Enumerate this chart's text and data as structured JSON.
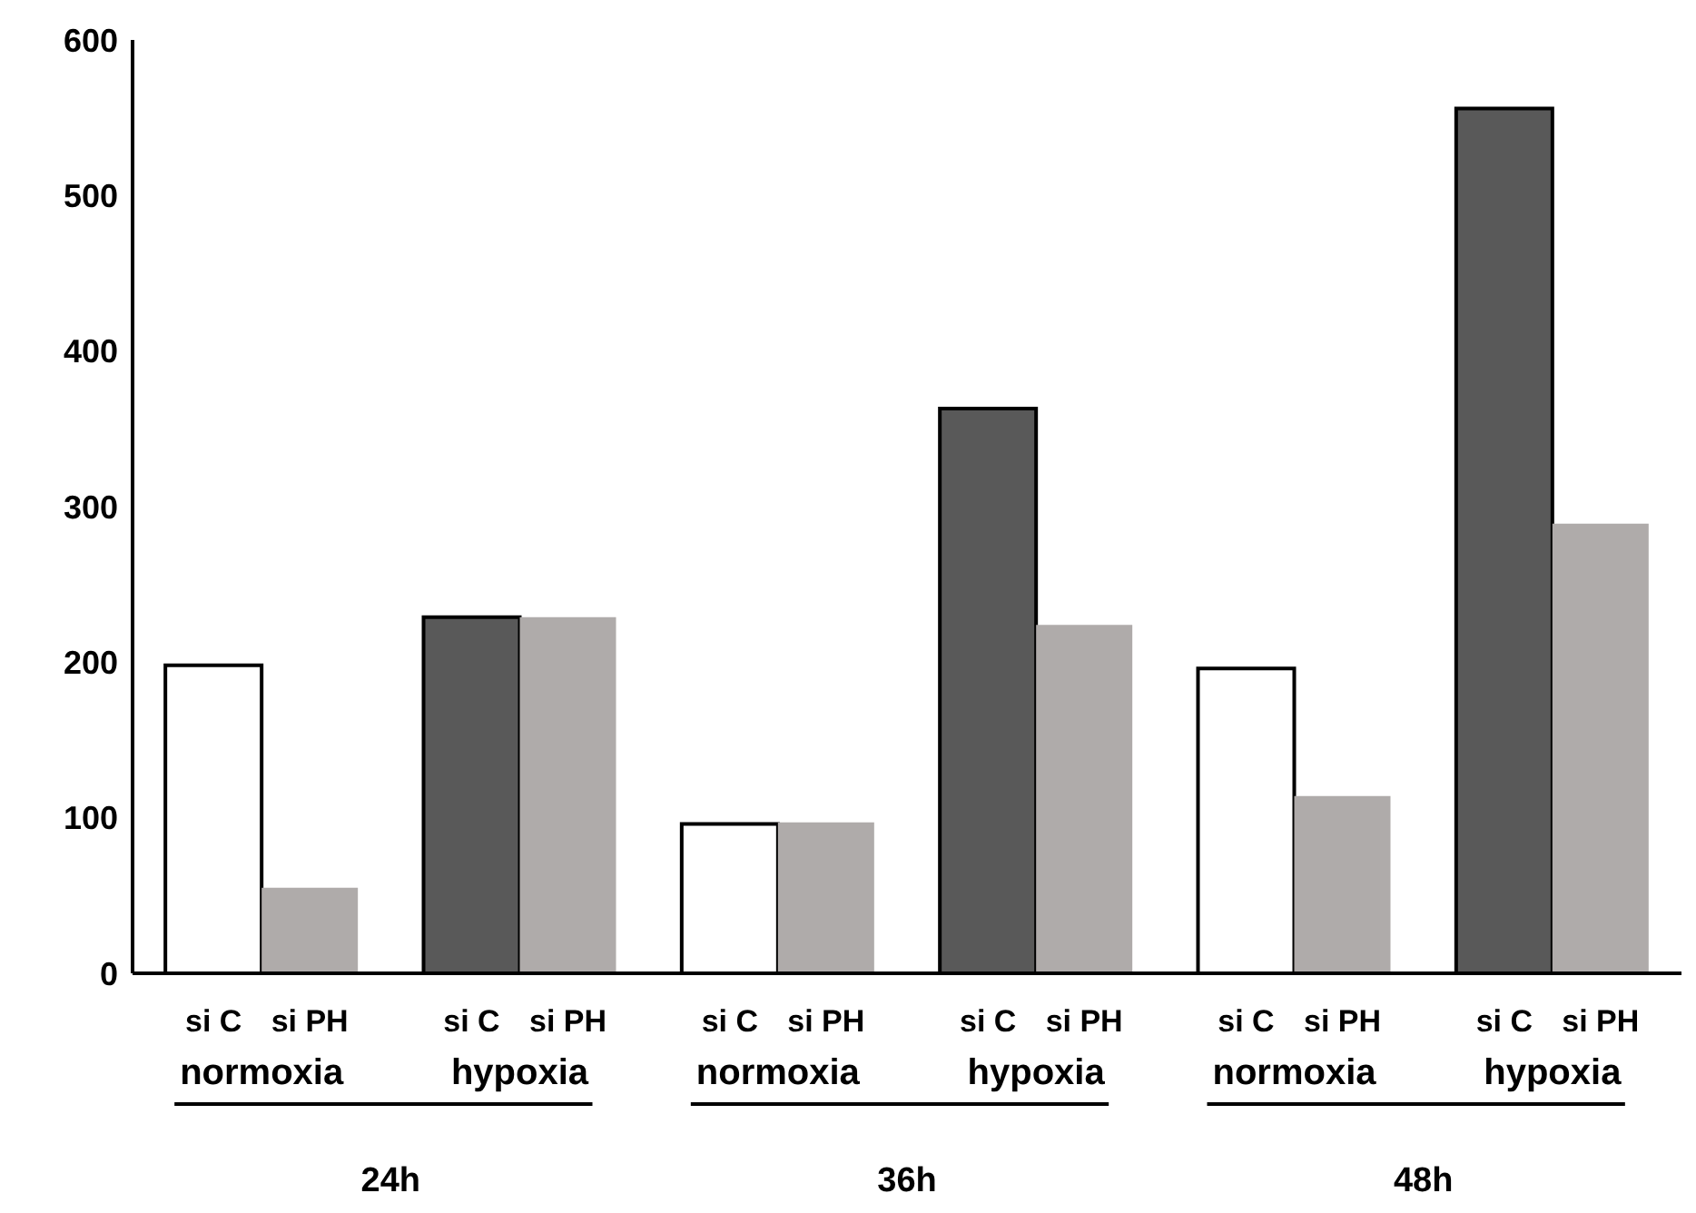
{
  "chart_data": {
    "type": "bar",
    "categories": [
      "normoxia",
      "hypoxia",
      "normoxia",
      "hypoxia",
      "normoxia",
      "hypoxia"
    ],
    "series": [
      {
        "name": "si C",
        "colors": [
          "#ffffff",
          "#595959",
          "#ffffff",
          "#595959",
          "#ffffff",
          "#595959"
        ],
        "values": [
          198,
          229,
          96,
          363,
          196,
          556
        ]
      },
      {
        "name": "si PH",
        "color": "#afabaa",
        "values": [
          55,
          229,
          97,
          224,
          114,
          289
        ]
      }
    ],
    "ylim": [
      0,
      600
    ],
    "yticks": [
      0,
      100,
      200,
      300,
      400,
      500,
      600
    ],
    "grid": false,
    "legend": false,
    "annotations": [
      "24h",
      "36h",
      "48h"
    ]
  }
}
